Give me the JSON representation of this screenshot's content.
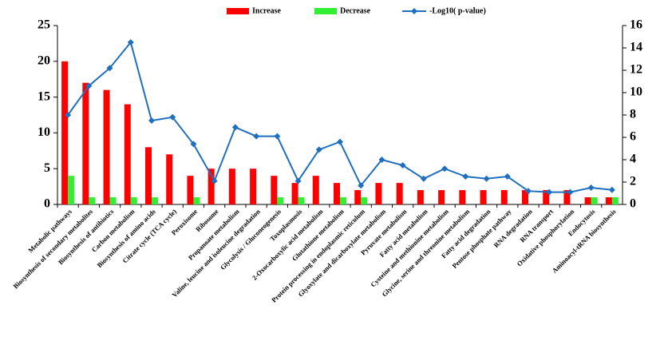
{
  "chart_data": {
    "type": "bar",
    "categories": [
      "Metabolic pathways",
      "Biosynthesis of secondary metabolites",
      "Biosynthesis of antibiotics",
      "Carbon metabolism",
      "Biosynthesis of amino acids",
      "Citrate cycle (TCA cycle)",
      "Peroxisome",
      "Ribosome",
      "Propanoate metabolism",
      "Valine, leucine and isoleucine degradation",
      "Glycolysis / Gluconeogenesis",
      "Toxoplasmosis",
      "2-Oxocarboxylic acid metabolism",
      "Glutathione metabolism",
      "Protein processing in endoplasmic reticulum",
      "Glyoxylate and dicarboxylate metabolism",
      "Pyruvate metabolism",
      "Fatty acid metabolism",
      "Cysteine and methionine metabolism",
      "Glycine, serine and threonine metabolism",
      "Fatty acid degradation",
      "Pentose phosphate pathway",
      "RNA degradation",
      "RNA transport",
      "Oxidative phosphorylation",
      "Endocytosis",
      "Aminoacyl-tRNA biosynthesis"
    ],
    "series": [
      {
        "name": "Increase",
        "type": "bar",
        "color": "#ff0000",
        "values": [
          20,
          17,
          16,
          14,
          8,
          7,
          4,
          5,
          5,
          5,
          4,
          3,
          4,
          3,
          2,
          3,
          3,
          2,
          2,
          2,
          2,
          2,
          2,
          2,
          2,
          1,
          1
        ]
      },
      {
        "name": "Decrease",
        "type": "bar",
        "color": "#33ee33",
        "values": [
          4,
          1,
          1,
          1,
          1,
          0,
          1,
          0,
          0,
          0,
          1,
          1,
          0,
          1,
          1,
          0,
          0,
          0,
          0,
          0,
          0,
          0,
          0,
          0,
          0,
          1,
          1
        ]
      },
      {
        "name": "-Log10( p-value)",
        "type": "line",
        "axis": "y2",
        "color": "#1f6fbf",
        "values": [
          8.0,
          10.6,
          12.2,
          14.5,
          7.5,
          7.8,
          5.4,
          2.1,
          6.9,
          6.1,
          6.1,
          2.1,
          4.9,
          5.6,
          1.7,
          4.0,
          3.5,
          2.3,
          3.2,
          2.5,
          2.3,
          2.5,
          1.2,
          1.1,
          1.1,
          1.5,
          1.3
        ]
      }
    ],
    "ylim": [
      0,
      25
    ],
    "yticks": [
      0,
      5,
      10,
      15,
      20,
      25
    ],
    "y2lim": [
      0,
      16
    ],
    "y2ticks": [
      0,
      2,
      4,
      6,
      8,
      10,
      12,
      14,
      16
    ],
    "legend": "top"
  }
}
